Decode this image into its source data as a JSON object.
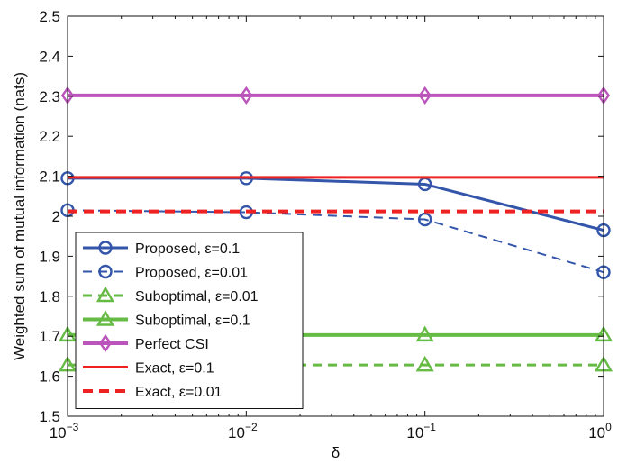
{
  "chart_data": {
    "type": "line",
    "xlabel": "δ",
    "ylabel": "Weighted sum of mutual information (nats)",
    "x_scale": "log",
    "x": [
      0.001,
      0.01,
      0.1,
      1
    ],
    "x_tick_labels": [
      {
        "base": "10",
        "exp": "−3"
      },
      {
        "base": "10",
        "exp": "−2"
      },
      {
        "base": "10",
        "exp": "−1"
      },
      {
        "base": "10",
        "exp": "0"
      }
    ],
    "ylim": [
      1.5,
      2.5
    ],
    "y_ticks": [
      "1.5",
      "1.6",
      "1.7",
      "1.8",
      "1.9",
      "2",
      "2.1",
      "2.2",
      "2.3",
      "2.4",
      "2.5"
    ],
    "grid": false,
    "legend_position": "bottom-left",
    "series": [
      {
        "name": "Proposed, ε=0.1",
        "values": [
          2.095,
          2.095,
          2.08,
          1.965
        ],
        "color": "#3355aa",
        "dash": "solid",
        "marker": "circle",
        "width": 3
      },
      {
        "name": "Proposed, ε=0.01",
        "values": [
          2.015,
          2.01,
          1.992,
          1.86
        ],
        "color": "#3355aa",
        "dash": "dashed",
        "marker": "circle",
        "width": 2
      },
      {
        "name": "Suboptimal, ε=0.01",
        "values": [
          1.628,
          1.628,
          1.628,
          1.628
        ],
        "color": "#66bb44",
        "dash": "dashed",
        "marker": "triangle",
        "width": 3
      },
      {
        "name": "Suboptimal, ε=0.1",
        "values": [
          1.703,
          1.703,
          1.703,
          1.703
        ],
        "color": "#66bb44",
        "dash": "solid",
        "marker": "triangle",
        "width": 4
      },
      {
        "name": "Perfect CSI",
        "values": [
          2.302,
          2.302,
          2.302,
          2.302
        ],
        "color": "#bb55bb",
        "dash": "solid",
        "marker": "diamond",
        "width": 4
      },
      {
        "name": "Exact, ε=0.1",
        "values": [
          2.097,
          2.097,
          2.097,
          2.097
        ],
        "color": "#ee2222",
        "dash": "solid",
        "marker": "none",
        "width": 3
      },
      {
        "name": "Exact, ε=0.01",
        "values": [
          2.012,
          2.012,
          2.012,
          2.012
        ],
        "color": "#ee2222",
        "dash": "dashed",
        "marker": "none",
        "width": 4
      }
    ]
  }
}
